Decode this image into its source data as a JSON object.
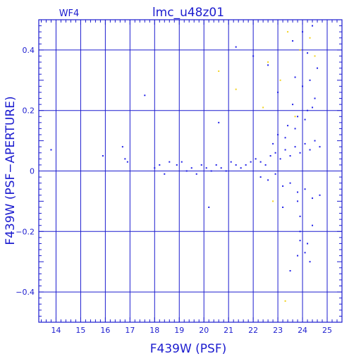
{
  "chart_data": {
    "type": "scatter",
    "title": "lmc_u48z01",
    "subtitle": "WF4",
    "xlabel": "F439W (PSF)",
    "ylabel": "F439W (PSF−APERTURE)",
    "xlim": [
      13.3,
      25.6
    ],
    "ylim": [
      -0.5,
      0.5
    ],
    "x_ticks": [
      14,
      15,
      16,
      17,
      18,
      19,
      20,
      21,
      22,
      23,
      24,
      25
    ],
    "y_ticks": [
      -0.4,
      -0.2,
      0,
      0.2,
      0.4
    ],
    "x_tick_labels": [
      "14",
      "15",
      "16",
      "17",
      "18",
      "19",
      "20",
      "21",
      "22",
      "23",
      "24",
      "25"
    ],
    "y_tick_labels": [
      "−0.4",
      "−0.2",
      "0",
      "0.2",
      "0.4"
    ],
    "grid": true,
    "colors": {
      "axes": "#1c1ccf",
      "points": "#1f1fe8",
      "flagged": "#f2d21b"
    },
    "series": [
      {
        "color": "#1f1fe8",
        "x": [
          13.8,
          15.9,
          16.7,
          16.8,
          16.9,
          17.6,
          18.0,
          18.2,
          18.4,
          18.6,
          18.9,
          19.1,
          19.3,
          19.5,
          19.7,
          19.9,
          20.1,
          20.3,
          20.5,
          20.7,
          20.9,
          21.1,
          21.3,
          21.5,
          21.7,
          21.9,
          22.1,
          22.3,
          22.5,
          22.7,
          22.9,
          23.1,
          23.3,
          23.5,
          23.7,
          23.9,
          24.1,
          24.3,
          24.5,
          24.7,
          22.3,
          22.6,
          22.9,
          23.2,
          23.5,
          23.8,
          24.1,
          24.4,
          24.7,
          23.0,
          23.4,
          23.8,
          24.2,
          24.5,
          23.6,
          24.0,
          24.3,
          24.6,
          23.2,
          23.9,
          24.4,
          22.8,
          23.3,
          23.7,
          24.1,
          24.4,
          23.9,
          24.2,
          23.8,
          24.3,
          20.2,
          20.6,
          21.3,
          22.0,
          22.6,
          23.0,
          23.6,
          24.0,
          24.4,
          23.5,
          24.1,
          23.9,
          24.2,
          23.7,
          23.8
        ],
        "y": [
          0.07,
          0.05,
          0.08,
          0.04,
          0.03,
          0.25,
          0.01,
          0.02,
          -0.01,
          0.03,
          0.02,
          0.03,
          0.0,
          0.01,
          -0.01,
          0.02,
          0.01,
          0.0,
          0.02,
          0.01,
          0.0,
          0.03,
          0.02,
          0.01,
          0.02,
          0.03,
          0.04,
          0.03,
          0.02,
          0.05,
          0.06,
          0.04,
          0.07,
          0.05,
          0.08,
          0.06,
          0.09,
          0.07,
          0.1,
          0.08,
          -0.02,
          -0.03,
          -0.01,
          -0.05,
          -0.04,
          -0.07,
          -0.06,
          -0.09,
          -0.08,
          0.12,
          0.15,
          0.18,
          0.2,
          0.24,
          0.22,
          0.28,
          0.3,
          0.34,
          -0.12,
          -0.15,
          -0.18,
          0.09,
          0.11,
          0.14,
          0.17,
          0.21,
          -0.2,
          -0.24,
          -0.28,
          -0.3,
          -0.12,
          0.16,
          0.41,
          0.38,
          0.35,
          0.26,
          0.43,
          0.46,
          0.48,
          -0.33,
          -0.27,
          -0.23,
          0.39,
          0.31,
          -0.1
        ]
      },
      {
        "color": "#f2d21b",
        "x": [
          20.6,
          21.3,
          22.6,
          23.4,
          23.9,
          24.3,
          22.4,
          23.1,
          23.7,
          24.5,
          22.8,
          23.3
        ],
        "y": [
          0.33,
          0.27,
          0.36,
          0.46,
          0.4,
          0.44,
          0.21,
          0.3,
          0.18,
          0.38,
          -0.1,
          -0.43
        ]
      }
    ]
  }
}
